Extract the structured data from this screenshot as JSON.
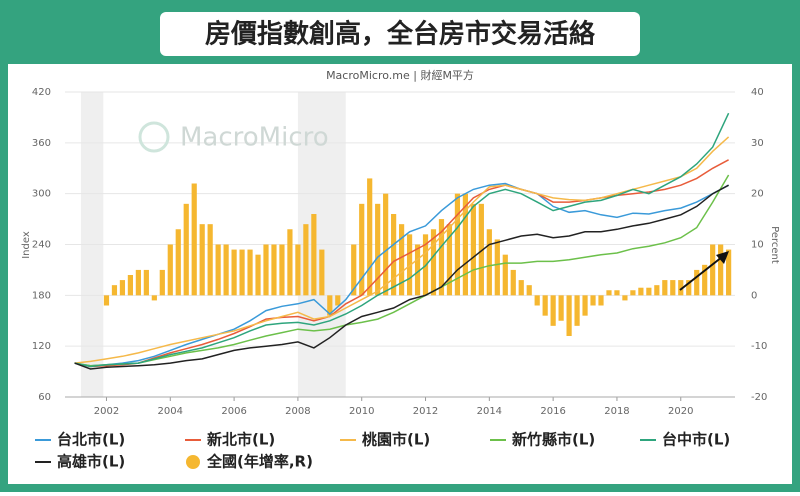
{
  "chart_data": {
    "type": "combo",
    "title": "房價指數創高，全台房市交易活絡",
    "subtitle": "MacroMicro.me | 財經M平方",
    "watermark": "MacroMicro",
    "y_label": "Index",
    "y2_label": "Percent",
    "xlim": [
      2000.7,
      2021.7
    ],
    "xticks": [
      2002,
      2004,
      2006,
      2008,
      2010,
      2012,
      2014,
      2016,
      2018,
      2020
    ],
    "ylim": [
      60,
      420
    ],
    "yticks": [
      60,
      120,
      180,
      240,
      300,
      360,
      420
    ],
    "y2lim": [
      -20,
      40
    ],
    "y2ticks": [
      -20,
      -10,
      0,
      10,
      20,
      30,
      40
    ],
    "grid": true,
    "shaded_ranges": [
      [
        2001.2,
        2001.9
      ],
      [
        2008.0,
        2009.5
      ]
    ],
    "x": [
      2001,
      2001.5,
      2002,
      2002.5,
      2003,
      2003.5,
      2004,
      2004.5,
      2005,
      2005.5,
      2006,
      2006.5,
      2007,
      2007.5,
      2008,
      2008.5,
      2009,
      2009.5,
      2010,
      2010.5,
      2011,
      2011.5,
      2012,
      2012.5,
      2013,
      2013.5,
      2014,
      2014.5,
      2015,
      2015.5,
      2016,
      2016.5,
      2017,
      2017.5,
      2018,
      2018.5,
      2019,
      2019.5,
      2020,
      2020.5,
      2021,
      2021.5
    ],
    "series": [
      {
        "name": "台北市(L)",
        "type": "line",
        "color": "#3a9ad9",
        "values": [
          100,
          97,
          98,
          100,
          103,
          108,
          115,
          122,
          128,
          134,
          140,
          150,
          162,
          167,
          170,
          175,
          158,
          175,
          200,
          225,
          240,
          255,
          262,
          280,
          295,
          305,
          310,
          312,
          305,
          300,
          285,
          278,
          280,
          275,
          272,
          277,
          276,
          280,
          283,
          290,
          300,
          310
        ]
      },
      {
        "name": "新北市(L)",
        "type": "line",
        "color": "#e85c3a",
        "values": [
          100,
          96,
          97,
          98,
          100,
          106,
          112,
          117,
          122,
          128,
          135,
          143,
          152,
          154,
          155,
          150,
          155,
          170,
          180,
          200,
          220,
          230,
          240,
          255,
          275,
          295,
          305,
          310,
          305,
          300,
          290,
          290,
          292,
          295,
          298,
          300,
          302,
          305,
          310,
          318,
          330,
          340
        ]
      },
      {
        "name": "桃園市(L)",
        "type": "line",
        "color": "#f5b94a",
        "values": [
          100,
          102,
          105,
          108,
          112,
          117,
          122,
          126,
          130,
          134,
          138,
          144,
          150,
          155,
          160,
          152,
          155,
          165,
          175,
          185,
          200,
          215,
          230,
          250,
          270,
          290,
          308,
          310,
          305,
          300,
          295,
          293,
          292,
          295,
          300,
          305,
          310,
          315,
          320,
          330,
          350,
          367
        ]
      },
      {
        "name": "新竹縣市(L)",
        "type": "line",
        "color": "#6cc04a",
        "values": [
          100,
          97,
          98,
          99,
          100,
          104,
          108,
          112,
          115,
          118,
          122,
          127,
          132,
          136,
          140,
          138,
          140,
          145,
          148,
          152,
          160,
          170,
          180,
          190,
          200,
          210,
          215,
          218,
          218,
          220,
          220,
          222,
          225,
          228,
          230,
          235,
          238,
          242,
          248,
          260,
          290,
          322
        ]
      },
      {
        "name": "台中市(L)",
        "type": "line",
        "color": "#2ea57d",
        "values": [
          100,
          96,
          98,
          99,
          100,
          105,
          110,
          114,
          118,
          124,
          130,
          138,
          145,
          147,
          148,
          145,
          150,
          158,
          168,
          180,
          190,
          200,
          215,
          238,
          260,
          285,
          300,
          305,
          300,
          290,
          280,
          285,
          290,
          292,
          298,
          305,
          300,
          310,
          320,
          335,
          355,
          395
        ]
      },
      {
        "name": "高雄市(L)",
        "type": "line",
        "color": "#222222",
        "values": [
          100,
          93,
          95,
          96,
          97,
          98,
          100,
          103,
          105,
          110,
          115,
          118,
          120,
          122,
          125,
          118,
          130,
          145,
          155,
          160,
          165,
          175,
          180,
          190,
          210,
          225,
          240,
          245,
          250,
          252,
          248,
          250,
          255,
          255,
          258,
          262,
          265,
          270,
          275,
          285,
          300,
          310
        ]
      },
      {
        "name": "全國(年增率,R)",
        "type": "bar",
        "axis": "y2",
        "color": "#f5b730",
        "x": [
          2002,
          2002.25,
          2002.5,
          2002.75,
          2003,
          2003.25,
          2003.5,
          2003.75,
          2004,
          2004.25,
          2004.5,
          2004.75,
          2005,
          2005.25,
          2005.5,
          2005.75,
          2006,
          2006.25,
          2006.5,
          2006.75,
          2007,
          2007.25,
          2007.5,
          2007.75,
          2008,
          2008.25,
          2008.5,
          2008.75,
          2009,
          2009.25,
          2009.5,
          2009.75,
          2010,
          2010.25,
          2010.5,
          2010.75,
          2011,
          2011.25,
          2011.5,
          2011.75,
          2012,
          2012.25,
          2012.5,
          2012.75,
          2013,
          2013.25,
          2013.5,
          2013.75,
          2014,
          2014.25,
          2014.5,
          2014.75,
          2015,
          2015.25,
          2015.5,
          2015.75,
          2016,
          2016.25,
          2016.5,
          2016.75,
          2017,
          2017.25,
          2017.5,
          2017.75,
          2018,
          2018.25,
          2018.5,
          2018.75,
          2019,
          2019.25,
          2019.5,
          2019.75,
          2020,
          2020.25,
          2020.5,
          2020.75,
          2021,
          2021.25,
          2021.5
        ],
        "values": [
          -2,
          2,
          3,
          4,
          5,
          5,
          -1,
          5,
          10,
          13,
          18,
          22,
          14,
          14,
          10,
          10,
          9,
          9,
          9,
          8,
          10,
          10,
          10,
          13,
          10,
          14,
          16,
          9,
          -4,
          -2,
          0,
          10,
          18,
          23,
          18,
          20,
          16,
          14,
          12,
          10,
          12,
          13,
          15,
          14,
          20,
          20,
          18,
          18,
          13,
          11,
          8,
          5,
          3,
          2,
          -2,
          -4,
          -6,
          -5,
          -8,
          -6,
          -4,
          -2,
          -2,
          1,
          1,
          -1,
          1,
          1.5,
          1.5,
          2,
          3,
          3,
          3,
          3,
          5,
          6,
          10,
          10,
          9
        ]
      }
    ]
  }
}
